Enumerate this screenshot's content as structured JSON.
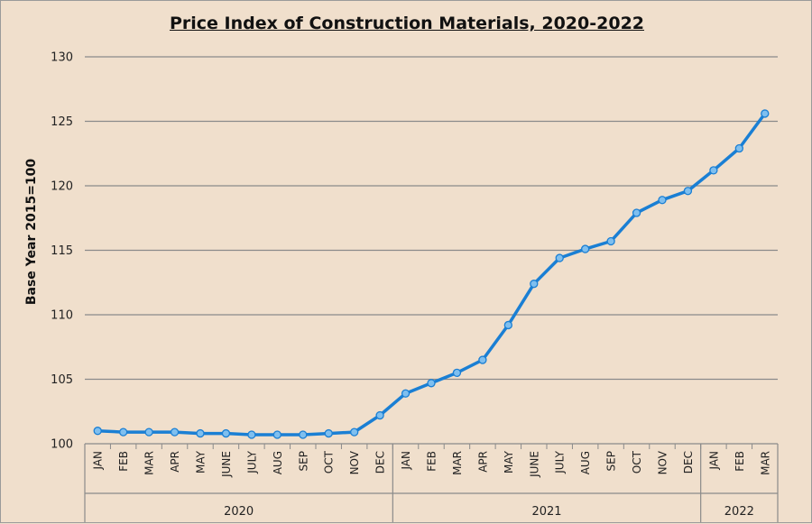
{
  "chart_data": {
    "type": "line",
    "title": "Price Index of Construction Materials, 2020-2022",
    "ylabel": "Base Year 2015=100",
    "xlabel": "",
    "ylim": [
      100,
      130
    ],
    "yticks": [
      100,
      105,
      110,
      115,
      120,
      125,
      130
    ],
    "grid": true,
    "categories": [
      "JAN",
      "FEB",
      "MAR",
      "APR",
      "MAY",
      "JUNE",
      "JULY",
      "AUG",
      "SEP",
      "OCT",
      "NOV",
      "DEC",
      "JAN",
      "FEB",
      "MAR",
      "APR",
      "MAY",
      "JUNE",
      "JULY",
      "AUG",
      "SEP",
      "OCT",
      "NOV",
      "DEC",
      "JAN",
      "FEB",
      "MAR"
    ],
    "groups": [
      {
        "label": "2020",
        "count": 12
      },
      {
        "label": "2021",
        "count": 12
      },
      {
        "label": "2022",
        "count": 3
      }
    ],
    "series": [
      {
        "values": [
          101.0,
          100.9,
          100.9,
          100.9,
          100.8,
          100.8,
          100.7,
          100.7,
          100.7,
          100.8,
          100.9,
          102.2,
          103.9,
          104.7,
          105.5,
          106.5,
          109.2,
          112.4,
          114.4,
          115.1,
          115.7,
          117.9,
          118.9,
          119.6,
          121.2,
          122.9,
          125.6
        ]
      }
    ],
    "line_color": "#1a7fd4",
    "marker_color": "#7fbfef"
  }
}
